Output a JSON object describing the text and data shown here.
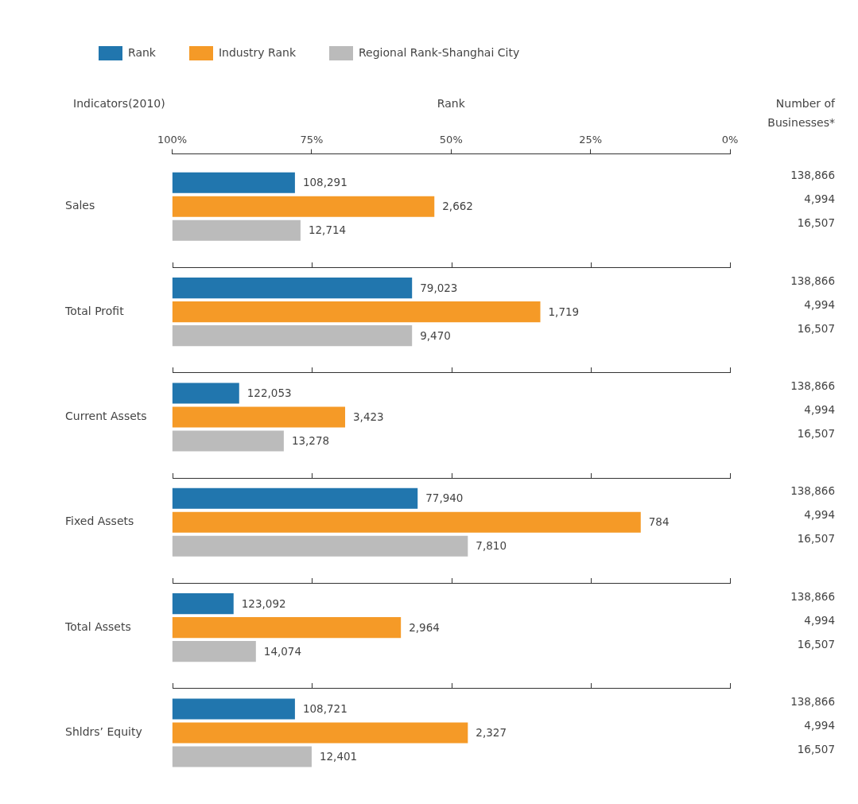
{
  "chart_data": {
    "type": "bar",
    "orientation": "horizontal",
    "xlabel": "Rank",
    "ylabel": "Indicators(2010)",
    "y2label": "Number of Businesses*",
    "categories": [
      "Sales",
      "Total Profit",
      "Current Assets",
      "Fixed Assets",
      "Total Assets",
      "Shldrs’ Equity"
    ],
    "series": [
      {
        "name": "Rank",
        "color": "#2176ae",
        "values": [
          -22,
          -43,
          -12,
          -44,
          -11,
          -22
        ],
        "base": [
          100,
          100,
          100,
          100,
          100,
          100
        ]
      },
      {
        "name": "Industry Rank",
        "color": "#f59a27",
        "values": [
          -47,
          -66,
          -31,
          -84,
          -41,
          -53
        ],
        "base": [
          100,
          100,
          100,
          100,
          100,
          100
        ]
      },
      {
        "name": "Regional Rank-Shanghai City",
        "color": "#bbbbbb",
        "values": [
          -23,
          -43,
          -20,
          -53,
          -15,
          -25
        ],
        "base": [
          100,
          100,
          100,
          100,
          100,
          100
        ]
      }
    ],
    "annotations": [
      "108,291",
      "2,662",
      "12,714",
      "79,023",
      "1,719",
      "9,470",
      "122,053",
      "3,423",
      "13,278",
      "77,940",
      "784",
      "7,810",
      "123,092",
      "2,964",
      "14,074",
      "108,721",
      "2,327",
      "12,401",
      "138,866",
      "4,994",
      "16,507",
      "138,866",
      "4,994",
      "16,507",
      "138,866",
      "4,994",
      "16,507",
      "138,866",
      "4,994",
      "16,507",
      "138,866",
      "4,994",
      "16,507",
      "138,866",
      "4,994",
      "16,507"
    ],
    "xlim": [
      100,
      0
    ],
    "xticks": [
      {
        "value": 100,
        "label": "100%"
      },
      {
        "value": 75,
        "label": "75%"
      },
      {
        "value": 50,
        "label": "50%"
      },
      {
        "value": 25,
        "label": "25%"
      },
      {
        "value": 0,
        "label": "0%"
      }
    ],
    "grid": false,
    "legend": "top left"
  }
}
